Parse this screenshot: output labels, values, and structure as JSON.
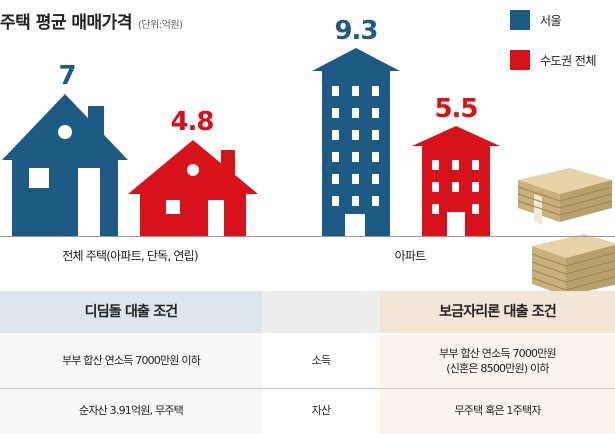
{
  "title": "주택 평균 매매가격",
  "unit_note": "(단위:억원)",
  "legend": [
    {
      "label": "서울",
      "color": "#1d5b85"
    },
    {
      "label": "수도권 전체",
      "color": "#d7121b"
    }
  ],
  "chart_data": {
    "type": "bar",
    "categories": [
      "전체 주택(아파트, 단독, 연립)",
      "아파트"
    ],
    "series": [
      {
        "name": "서울",
        "values": [
          7,
          9.3
        ]
      },
      {
        "name": "수도권 전체",
        "values": [
          4.8,
          5.5
        ]
      }
    ],
    "value_labels": [
      "7",
      "4.8",
      "9.3",
      "5.5"
    ]
  },
  "table": {
    "headers": [
      "디딤돌 대출 조건",
      "",
      "보금자리론 대출 조건"
    ],
    "rows": [
      {
        "left": "부부 합산 연소득 7000만원 이하",
        "middle": "소득",
        "right_line1": "부부 합산 연소득 7000만원",
        "right_line2": "(신혼은 8500만원) 이하"
      },
      {
        "left": "순자산 3.91억원, 무주택",
        "middle": "자산",
        "right_line1": "무주택 혹은 1주택자",
        "right_line2": ""
      }
    ]
  },
  "colors": {
    "seoul": "#1d5b85",
    "metro": "#d7121b",
    "header_left_bg": "#dde6ee",
    "header_right_bg": "#f3e6d6",
    "row_left_bg": "#f7f7f7",
    "row_right_bg": "#fbf4ec"
  },
  "icons": [
    "house-icon",
    "apartment-building-icon",
    "money-stack-icon"
  ]
}
